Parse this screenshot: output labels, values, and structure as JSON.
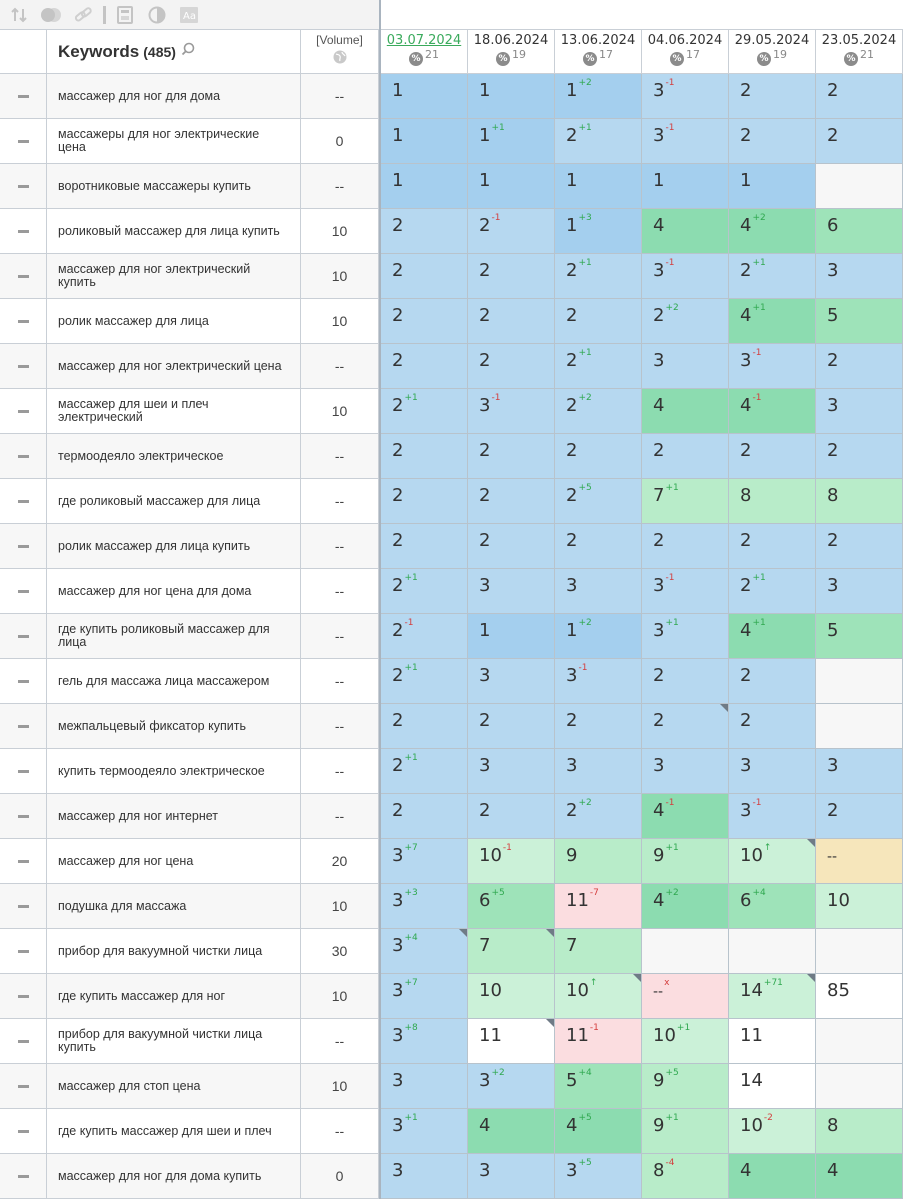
{
  "header": {
    "keywords_label": "Keywords",
    "keywords_count": "(485)",
    "volume_label": "[Volume]"
  },
  "dates": [
    {
      "date": "03.07.2024",
      "pct": "21",
      "active": true
    },
    {
      "date": "18.06.2024",
      "pct": "19",
      "active": false
    },
    {
      "date": "13.06.2024",
      "pct": "17",
      "active": false
    },
    {
      "date": "04.06.2024",
      "pct": "17",
      "active": false
    },
    {
      "date": "29.05.2024",
      "pct": "19",
      "active": false
    },
    {
      "date": "23.05.2024",
      "pct": "21",
      "active": false
    }
  ],
  "icons": [
    "sort-icon",
    "toggle-icon",
    "link-icon",
    "divider",
    "calculator-icon",
    "contrast-icon",
    "text-icon"
  ],
  "rows": [
    {
      "kw": "массажер для ног для дома",
      "vol": "--",
      "alt": true,
      "cells": [
        {
          "v": "1",
          "c": "b1"
        },
        {
          "v": "1",
          "c": "b1"
        },
        {
          "v": "1",
          "ch": "+2",
          "c": "b1"
        },
        {
          "v": "3",
          "ch": "-1",
          "c": "b2"
        },
        {
          "v": "2",
          "c": "b2"
        },
        {
          "v": "2",
          "c": "b2"
        }
      ]
    },
    {
      "kw": "массажеры для ног электрические цена",
      "vol": "0",
      "alt": false,
      "cells": [
        {
          "v": "1",
          "c": "b1"
        },
        {
          "v": "1",
          "ch": "+1",
          "c": "b1"
        },
        {
          "v": "2",
          "ch": "+1",
          "c": "b2"
        },
        {
          "v": "3",
          "ch": "-1",
          "c": "b2"
        },
        {
          "v": "2",
          "c": "b2"
        },
        {
          "v": "2",
          "c": "b2"
        }
      ]
    },
    {
      "kw": "воротниковые массажеры купить",
      "vol": "--",
      "alt": true,
      "cells": [
        {
          "v": "1",
          "c": "b1"
        },
        {
          "v": "1",
          "c": "b1"
        },
        {
          "v": "1",
          "c": "b1"
        },
        {
          "v": "1",
          "c": "b1"
        },
        {
          "v": "1",
          "c": "b1"
        },
        {
          "v": "",
          "c": "em"
        }
      ]
    },
    {
      "kw": "роликовый массажер для лица купить",
      "vol": "10",
      "alt": false,
      "cells": [
        {
          "v": "2",
          "c": "b2"
        },
        {
          "v": "2",
          "ch": "-1",
          "c": "b2"
        },
        {
          "v": "1",
          "ch": "+3",
          "c": "b1"
        },
        {
          "v": "4",
          "c": "g1"
        },
        {
          "v": "4",
          "ch": "+2",
          "c": "g1"
        },
        {
          "v": "6",
          "c": "g2"
        }
      ]
    },
    {
      "kw": "массажер для ног электрический купить",
      "vol": "10",
      "alt": true,
      "cells": [
        {
          "v": "2",
          "c": "b2"
        },
        {
          "v": "2",
          "c": "b2"
        },
        {
          "v": "2",
          "ch": "+1",
          "c": "b2"
        },
        {
          "v": "3",
          "ch": "-1",
          "c": "b2"
        },
        {
          "v": "2",
          "ch": "+1",
          "c": "b2"
        },
        {
          "v": "3",
          "c": "b2"
        }
      ]
    },
    {
      "kw": "ролик массажер для лица",
      "vol": "10",
      "alt": false,
      "cells": [
        {
          "v": "2",
          "c": "b2"
        },
        {
          "v": "2",
          "c": "b2"
        },
        {
          "v": "2",
          "c": "b2"
        },
        {
          "v": "2",
          "ch": "+2",
          "c": "b2"
        },
        {
          "v": "4",
          "ch": "+1",
          "c": "g1"
        },
        {
          "v": "5",
          "c": "g2"
        }
      ]
    },
    {
      "kw": "массажер для ног электрический цена",
      "vol": "--",
      "alt": true,
      "cells": [
        {
          "v": "2",
          "c": "b2"
        },
        {
          "v": "2",
          "c": "b2"
        },
        {
          "v": "2",
          "ch": "+1",
          "c": "b2"
        },
        {
          "v": "3",
          "c": "b2"
        },
        {
          "v": "3",
          "ch": "-1",
          "c": "b2"
        },
        {
          "v": "2",
          "c": "b2"
        }
      ]
    },
    {
      "kw": "массажер для шеи и плеч электрический",
      "vol": "10",
      "alt": false,
      "cells": [
        {
          "v": "2",
          "ch": "+1",
          "c": "b2"
        },
        {
          "v": "3",
          "ch": "-1",
          "c": "b2"
        },
        {
          "v": "2",
          "ch": "+2",
          "c": "b2"
        },
        {
          "v": "4",
          "c": "g1"
        },
        {
          "v": "4",
          "ch": "-1",
          "c": "g1"
        },
        {
          "v": "3",
          "c": "b2"
        }
      ]
    },
    {
      "kw": "термоодеяло электрическое",
      "vol": "--",
      "alt": true,
      "cells": [
        {
          "v": "2",
          "c": "b2"
        },
        {
          "v": "2",
          "c": "b2"
        },
        {
          "v": "2",
          "c": "b2"
        },
        {
          "v": "2",
          "c": "b2"
        },
        {
          "v": "2",
          "c": "b2"
        },
        {
          "v": "2",
          "c": "b2"
        }
      ]
    },
    {
      "kw": "где роликовый массажер для лица",
      "vol": "--",
      "alt": false,
      "cells": [
        {
          "v": "2",
          "c": "b2"
        },
        {
          "v": "2",
          "c": "b2"
        },
        {
          "v": "2",
          "ch": "+5",
          "c": "b2"
        },
        {
          "v": "7",
          "ch": "+1",
          "c": "g3"
        },
        {
          "v": "8",
          "c": "g3"
        },
        {
          "v": "8",
          "c": "g3"
        }
      ]
    },
    {
      "kw": "ролик массажер для лица купить",
      "vol": "--",
      "alt": true,
      "cells": [
        {
          "v": "2",
          "c": "b2"
        },
        {
          "v": "2",
          "c": "b2"
        },
        {
          "v": "2",
          "c": "b2"
        },
        {
          "v": "2",
          "c": "b2"
        },
        {
          "v": "2",
          "c": "b2"
        },
        {
          "v": "2",
          "c": "b2"
        }
      ]
    },
    {
      "kw": "массажер для ног цена для дома",
      "vol": "--",
      "alt": false,
      "cells": [
        {
          "v": "2",
          "ch": "+1",
          "c": "b2"
        },
        {
          "v": "3",
          "c": "b2"
        },
        {
          "v": "3",
          "c": "b2"
        },
        {
          "v": "3",
          "ch": "-1",
          "c": "b2"
        },
        {
          "v": "2",
          "ch": "+1",
          "c": "b2"
        },
        {
          "v": "3",
          "c": "b2"
        }
      ]
    },
    {
      "kw": "где купить роликовый массажер для лица",
      "vol": "--",
      "alt": true,
      "cells": [
        {
          "v": "2",
          "ch": "-1",
          "c": "b2"
        },
        {
          "v": "1",
          "c": "b1"
        },
        {
          "v": "1",
          "ch": "+2",
          "c": "b1"
        },
        {
          "v": "3",
          "ch": "+1",
          "c": "b2"
        },
        {
          "v": "4",
          "ch": "+1",
          "c": "g1"
        },
        {
          "v": "5",
          "c": "g2"
        }
      ]
    },
    {
      "kw": "гель для массажа лица массажером",
      "vol": "--",
      "alt": false,
      "cells": [
        {
          "v": "2",
          "ch": "+1",
          "c": "b2"
        },
        {
          "v": "3",
          "c": "b2"
        },
        {
          "v": "3",
          "ch": "-1",
          "c": "b2"
        },
        {
          "v": "2",
          "c": "b2"
        },
        {
          "v": "2",
          "c": "b2"
        },
        {
          "v": "",
          "c": "em"
        }
      ]
    },
    {
      "kw": "межпальцевый фиксатор купить",
      "vol": "--",
      "alt": true,
      "cells": [
        {
          "v": "2",
          "c": "b2"
        },
        {
          "v": "2",
          "c": "b2"
        },
        {
          "v": "2",
          "c": "b2"
        },
        {
          "v": "2",
          "c": "b2",
          "corner": true
        },
        {
          "v": "2",
          "c": "b2"
        },
        {
          "v": "",
          "c": "em"
        }
      ]
    },
    {
      "kw": "купить термоодеяло электрическое",
      "vol": "--",
      "alt": false,
      "cells": [
        {
          "v": "2",
          "ch": "+1",
          "c": "b2"
        },
        {
          "v": "3",
          "c": "b2"
        },
        {
          "v": "3",
          "c": "b2"
        },
        {
          "v": "3",
          "c": "b2"
        },
        {
          "v": "3",
          "c": "b2"
        },
        {
          "v": "3",
          "c": "b2"
        }
      ]
    },
    {
      "kw": "массажер для ног интернет",
      "vol": "--",
      "alt": true,
      "cells": [
        {
          "v": "2",
          "c": "b2"
        },
        {
          "v": "2",
          "c": "b2"
        },
        {
          "v": "2",
          "ch": "+2",
          "c": "b2"
        },
        {
          "v": "4",
          "ch": "-1",
          "c": "g1"
        },
        {
          "v": "3",
          "ch": "-1",
          "c": "b2"
        },
        {
          "v": "2",
          "c": "b2"
        }
      ]
    },
    {
      "kw": "массажер для ног цена",
      "vol": "20",
      "alt": false,
      "cells": [
        {
          "v": "3",
          "ch": "+7",
          "c": "b2"
        },
        {
          "v": "10",
          "ch": "-1",
          "c": "g4"
        },
        {
          "v": "9",
          "c": "g3"
        },
        {
          "v": "9",
          "ch": "+1",
          "c": "g3"
        },
        {
          "v": "10",
          "ch": "↑",
          "chdir": "up",
          "c": "g4",
          "corner": true
        },
        {
          "v": "--",
          "c": "yl",
          "small": true
        }
      ]
    },
    {
      "kw": "подушка для массажа",
      "vol": "10",
      "alt": true,
      "cells": [
        {
          "v": "3",
          "ch": "+3",
          "c": "b2"
        },
        {
          "v": "6",
          "ch": "+5",
          "c": "g2"
        },
        {
          "v": "11",
          "ch": "-7",
          "c": "pk"
        },
        {
          "v": "4",
          "ch": "+2",
          "c": "g1"
        },
        {
          "v": "6",
          "ch": "+4",
          "c": "g2"
        },
        {
          "v": "10",
          "c": "g4"
        }
      ]
    },
    {
      "kw": "прибор для вакуумной чистки лица",
      "vol": "30",
      "alt": false,
      "cells": [
        {
          "v": "3",
          "ch": "+4",
          "c": "b2",
          "corner": true
        },
        {
          "v": "7",
          "c": "g3",
          "corner": true
        },
        {
          "v": "7",
          "c": "g3"
        },
        {
          "v": "",
          "c": "em"
        },
        {
          "v": "",
          "c": "em"
        },
        {
          "v": "",
          "c": "em"
        }
      ]
    },
    {
      "kw": "где купить массажер для ног",
      "vol": "10",
      "alt": true,
      "cells": [
        {
          "v": "3",
          "ch": "+7",
          "c": "b2"
        },
        {
          "v": "10",
          "c": "g4"
        },
        {
          "v": "10",
          "ch": "↑",
          "chdir": "up",
          "c": "g4",
          "corner": true
        },
        {
          "v": "--",
          "ch": "x",
          "chdir": "dn",
          "c": "pk",
          "small": true
        },
        {
          "v": "14",
          "ch": "+71",
          "c": "g4",
          "corner": true
        },
        {
          "v": "85",
          "c": "wh"
        }
      ]
    },
    {
      "kw": "прибор для вакуумной чистки лица купить",
      "vol": "--",
      "alt": false,
      "cells": [
        {
          "v": "3",
          "ch": "+8",
          "c": "b2"
        },
        {
          "v": "11",
          "c": "wh",
          "corner": true
        },
        {
          "v": "11",
          "ch": "-1",
          "c": "pk"
        },
        {
          "v": "10",
          "ch": "+1",
          "c": "g4"
        },
        {
          "v": "11",
          "c": "wh"
        },
        {
          "v": "",
          "c": "em"
        }
      ]
    },
    {
      "kw": "массажер для стоп цена",
      "vol": "10",
      "alt": true,
      "cells": [
        {
          "v": "3",
          "c": "b2"
        },
        {
          "v": "3",
          "ch": "+2",
          "c": "b2"
        },
        {
          "v": "5",
          "ch": "+4",
          "c": "g2"
        },
        {
          "v": "9",
          "ch": "+5",
          "c": "g3"
        },
        {
          "v": "14",
          "c": "wh"
        },
        {
          "v": "",
          "c": "em"
        }
      ]
    },
    {
      "kw": "где купить массажер для шеи и плеч",
      "vol": "--",
      "alt": false,
      "cells": [
        {
          "v": "3",
          "ch": "+1",
          "c": "b2"
        },
        {
          "v": "4",
          "c": "g1"
        },
        {
          "v": "4",
          "ch": "+5",
          "c": "g1"
        },
        {
          "v": "9",
          "ch": "+1",
          "c": "g3"
        },
        {
          "v": "10",
          "ch": "-2",
          "c": "g4"
        },
        {
          "v": "8",
          "c": "g3"
        }
      ]
    },
    {
      "kw": "массажер для ног для дома купить",
      "vol": "0",
      "alt": true,
      "cells": [
        {
          "v": "3",
          "c": "b2"
        },
        {
          "v": "3",
          "c": "b2"
        },
        {
          "v": "3",
          "ch": "+5",
          "c": "b2"
        },
        {
          "v": "8",
          "ch": "-4",
          "c": "g3"
        },
        {
          "v": "4",
          "c": "g1"
        },
        {
          "v": "4",
          "c": "g1"
        }
      ]
    }
  ]
}
